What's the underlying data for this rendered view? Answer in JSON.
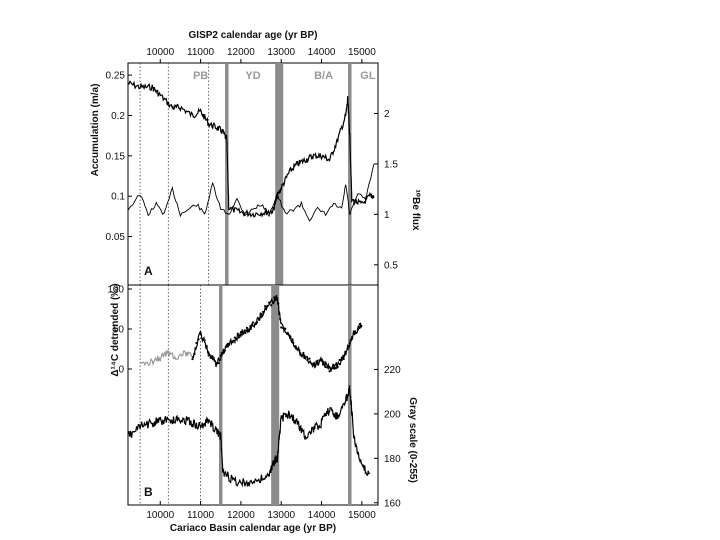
{
  "chart_data": [
    {
      "type": "line",
      "panel": "A",
      "top_axis": {
        "label": "GISP2 calendar age (yr BP)",
        "ticks": [
          10000,
          11000,
          12000,
          13000,
          14000,
          15000
        ],
        "range": [
          9200,
          15400
        ]
      },
      "ylabel_left": "Accumulation (m/a)",
      "yticks_left": [
        "0.25",
        "0.2",
        "0.15",
        "0.1",
        "0.05"
      ],
      "ylim_left": [
        -0.01,
        0.265
      ],
      "ylabel_right": "¹⁰Be flux",
      "yticks_right": [
        "2",
        "1.5",
        "1",
        "0.5"
      ],
      "ylim_right": [
        0.3,
        2.5
      ],
      "zone_labels": [
        {
          "text": "PB",
          "age": 11000
        },
        {
          "text": "YD",
          "age": 12300
        },
        {
          "text": "B/A",
          "age": 14050
        },
        {
          "text": "GL",
          "age": 15150
        }
      ],
      "dotted_lines": [
        9500,
        10200,
        11200
      ],
      "boundaries": [
        11650,
        14700
      ],
      "shaded_band": [
        12850,
        13050
      ],
      "series": [
        {
          "axis": "left",
          "x": [
            9200,
            9500,
            9800,
            10000,
            10300,
            10500,
            10800,
            11000,
            11200,
            11400,
            11550,
            11650,
            11700,
            12000,
            12300,
            12600,
            12800,
            12900,
            13000,
            13200,
            13400,
            13600,
            13800,
            14000,
            14200,
            14400,
            14600,
            14650,
            14700,
            14750,
            15000,
            15200,
            15300
          ],
          "y": [
            0.24,
            0.235,
            0.235,
            0.225,
            0.21,
            0.21,
            0.2,
            0.205,
            0.19,
            0.185,
            0.18,
            0.17,
            0.085,
            0.08,
            0.078,
            0.08,
            0.082,
            0.1,
            0.11,
            0.13,
            0.14,
            0.145,
            0.15,
            0.15,
            0.145,
            0.17,
            0.2,
            0.22,
            0.175,
            0.095,
            0.09,
            0.1,
            0.1
          ]
        },
        {
          "axis": "right",
          "x": [
            9200,
            9500,
            9700,
            9900,
            10100,
            10300,
            10500,
            10700,
            10900,
            11100,
            11300,
            11500,
            11700,
            11900,
            12100,
            12300,
            12500,
            12700,
            12900,
            13100,
            13300,
            13500,
            13700,
            13900,
            14100,
            14300,
            14500,
            14600,
            14700,
            14900,
            15100,
            15300
          ],
          "y": [
            1.05,
            1.2,
            1.0,
            1.1,
            1.0,
            1.25,
            1.0,
            1.05,
            1.1,
            1.0,
            1.3,
            1.05,
            1.0,
            1.15,
            1.0,
            1.05,
            1.1,
            1.0,
            1.2,
            1.0,
            1.05,
            1.1,
            0.95,
            1.05,
            1.0,
            1.1,
            1.05,
            1.3,
            1.0,
            1.2,
            1.15,
            1.5
          ]
        }
      ]
    },
    {
      "type": "line",
      "panel": "B",
      "xlabel": "Cariaco Basin calendar age (yr BP)",
      "xticks": [
        10000,
        11000,
        12000,
        13000,
        14000,
        15000
      ],
      "xlim": [
        9200,
        15400
      ],
      "ylabel_left": "Δ¹⁴C detrended (‰)",
      "yticks_left": [
        "100",
        "50",
        "0"
      ],
      "ylim_left": [
        -170,
        105
      ],
      "ylabel_right": "Gray scale (0-255)",
      "yticks_right": [
        "220",
        "200",
        "180",
        "160"
      ],
      "ylim_right": [
        159,
        258
      ],
      "dotted_lines": [
        9500,
        10200,
        11000
      ],
      "boundaries": [
        11500,
        14700
      ],
      "shaded_band": [
        12750,
        12950
      ],
      "series": [
        {
          "axis": "left",
          "x": [
            9500,
            9800,
            10000,
            10200,
            10400,
            10600,
            10800,
            11000,
            11200,
            11400,
            11600,
            11800,
            12000,
            12200,
            12400,
            12600,
            12800,
            12900,
            13000,
            13200,
            13400,
            13600,
            13800,
            14000,
            14200,
            14400,
            14600,
            14800,
            15000
          ],
          "y": [
            5,
            10,
            15,
            20,
            15,
            20,
            15,
            45,
            20,
            5,
            25,
            35,
            45,
            50,
            60,
            75,
            85,
            90,
            55,
            40,
            25,
            15,
            5,
            10,
            0,
            5,
            20,
            45,
            55
          ]
        },
        {
          "axis": "right",
          "x": [
            9200,
            9500,
            9800,
            10000,
            10300,
            10500,
            10800,
            11000,
            11200,
            11400,
            11500,
            11550,
            11800,
            12100,
            12400,
            12700,
            12800,
            12900,
            13000,
            13200,
            13400,
            13600,
            13800,
            14000,
            14200,
            14400,
            14600,
            14700,
            14800,
            15000,
            15200
          ],
          "y": [
            190,
            194,
            196,
            197,
            197,
            198,
            196,
            194,
            197,
            192,
            190,
            174,
            170,
            169,
            170,
            172,
            178,
            180,
            198,
            200,
            196,
            190,
            193,
            196,
            202,
            199,
            206,
            212,
            190,
            176,
            173
          ]
        }
      ]
    }
  ]
}
